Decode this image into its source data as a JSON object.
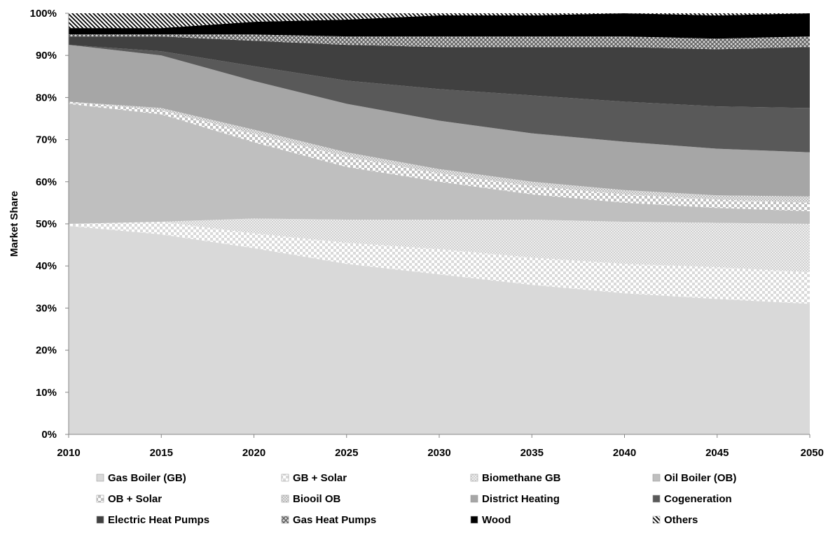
{
  "chart_data": {
    "type": "area",
    "stacked": "percent",
    "title": "",
    "xlabel": "",
    "ylabel": "Market Share",
    "x": [
      2010,
      2015,
      2020,
      2025,
      2030,
      2035,
      2040,
      2045,
      2050
    ],
    "x_tick_labels": [
      "2010",
      "2015",
      "2020",
      "2025",
      "2030",
      "2035",
      "2040",
      "2045",
      "2050"
    ],
    "ylim": [
      0,
      100
    ],
    "y_tick_labels": [
      "0%",
      "10%",
      "20%",
      "30%",
      "40%",
      "50%",
      "60%",
      "70%",
      "80%",
      "90%",
      "100%"
    ],
    "grid": false,
    "legend_position": "bottom",
    "series": [
      {
        "name": "Gas Boiler (GB)",
        "pattern": "solid-light",
        "color": "#d9d9d9",
        "values": [
          49.5,
          47.5,
          44.0,
          40.5,
          38.0,
          35.5,
          33.5,
          32.0,
          31.0
        ]
      },
      {
        "name": "GB + Solar",
        "pattern": "checker",
        "color": "#d9d9d9",
        "values": [
          0.5,
          3.0,
          3.5,
          5.0,
          6.0,
          6.5,
          7.0,
          7.5,
          7.5
        ]
      },
      {
        "name": "Biomethane GB",
        "pattern": "dots",
        "color": "#d9d9d9",
        "values": [
          0.0,
          0.0,
          3.5,
          5.5,
          7.0,
          9.0,
          10.0,
          10.5,
          11.5
        ]
      },
      {
        "name": "Oil Boiler (OB)",
        "pattern": "solid-mid",
        "color": "#bfbfbf",
        "values": [
          28.5,
          25.5,
          18.0,
          12.5,
          9.0,
          6.0,
          4.5,
          3.5,
          3.0
        ]
      },
      {
        "name": "OB + Solar",
        "pattern": "checker",
        "color": "#bfbfbf",
        "values": [
          0.5,
          1.0,
          2.0,
          2.5,
          2.0,
          2.0,
          2.0,
          2.0,
          2.0
        ]
      },
      {
        "name": "Biooil OB",
        "pattern": "dots",
        "color": "#bfbfbf",
        "values": [
          0.0,
          0.5,
          1.0,
          1.0,
          1.0,
          1.0,
          1.0,
          1.0,
          1.5
        ]
      },
      {
        "name": "District Heating",
        "pattern": "solid",
        "color": "#a6a6a6",
        "values": [
          13.5,
          12.5,
          11.5,
          11.5,
          11.5,
          11.5,
          11.5,
          11.0,
          10.5
        ]
      },
      {
        "name": "Cogeneration",
        "pattern": "solid",
        "color": "#595959",
        "values": [
          0.0,
          1.0,
          3.5,
          5.5,
          7.5,
          9.0,
          9.5,
          10.0,
          10.5
        ]
      },
      {
        "name": "Electric Heat Pumps",
        "pattern": "solid",
        "color": "#404040",
        "values": [
          2.0,
          3.5,
          6.0,
          8.5,
          10.0,
          11.5,
          13.0,
          13.5,
          14.5
        ]
      },
      {
        "name": "Gas Heat Pumps",
        "pattern": "crosshatch",
        "color": "#595959",
        "values": [
          0.5,
          0.5,
          1.5,
          2.0,
          2.5,
          2.5,
          2.5,
          2.5,
          2.5
        ]
      },
      {
        "name": "Wood",
        "pattern": "solid",
        "color": "#000000",
        "values": [
          1.5,
          1.5,
          3.0,
          4.0,
          5.0,
          5.0,
          5.5,
          5.5,
          5.5
        ]
      },
      {
        "name": "Others",
        "pattern": "diagonal",
        "color": "#000000",
        "values": [
          3.5,
          3.5,
          2.0,
          1.5,
          0.5,
          0.5,
          0.0,
          0.5,
          0.0
        ]
      }
    ]
  }
}
